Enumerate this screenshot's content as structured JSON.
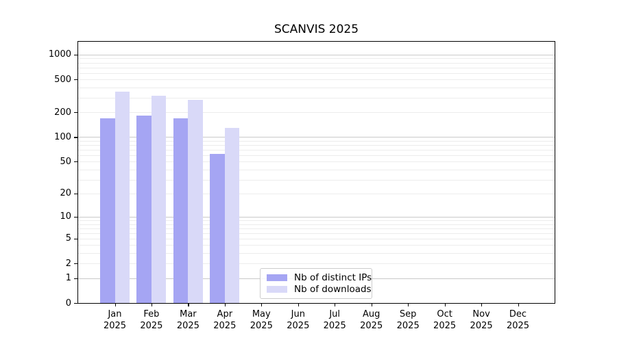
{
  "figure": {
    "title": "SCANVIS 2025"
  },
  "colors": {
    "distinct_ips": "#a5a5f3",
    "downloads": "#d9d9f8",
    "grid_major": "#c9c9c9",
    "grid_minor": "#ececec",
    "spine": "#000000",
    "background": "#ffffff",
    "legend_border": "#cccccc"
  },
  "legend": {
    "items": [
      {
        "key": "distinct_ips",
        "label": "Nb of distinct IPs"
      },
      {
        "key": "downloads",
        "label": "Nb of downloads"
      }
    ],
    "position": "lower center"
  },
  "y_axis": {
    "scale": "log1p",
    "tick_labels": [
      0,
      1,
      2,
      5,
      10,
      20,
      50,
      100,
      200,
      500,
      1000
    ],
    "major_gridlines": [
      1,
      10,
      100,
      1000
    ],
    "minor_gridline_decades": [
      1,
      10,
      100
    ],
    "max": 1430
  },
  "x_axis": {
    "months": [
      "Jan",
      "Feb",
      "Mar",
      "Apr",
      "May",
      "Jun",
      "Jul",
      "Aug",
      "Sep",
      "Oct",
      "Nov",
      "Dec"
    ],
    "year": "2025"
  },
  "chart_data": {
    "type": "bar",
    "title": "SCANVIS 2025",
    "categories": [
      "Jan 2025",
      "Feb 2025",
      "Mar 2025",
      "Apr 2025",
      "May 2025",
      "Jun 2025",
      "Jul 2025",
      "Aug 2025",
      "Sep 2025",
      "Oct 2025",
      "Nov 2025",
      "Dec 2025"
    ],
    "series": [
      {
        "name": "Nb of distinct IPs",
        "color": "#a5a5f3",
        "values": [
          170,
          182,
          168,
          62,
          0,
          0,
          0,
          0,
          0,
          0,
          0,
          0
        ]
      },
      {
        "name": "Nb of downloads",
        "color": "#d9d9f8",
        "values": [
          355,
          320,
          285,
          130,
          0,
          0,
          0,
          0,
          0,
          0,
          0,
          0
        ]
      }
    ],
    "xlabel": "",
    "ylabel": "",
    "yscale": "log1p",
    "ylim": [
      0,
      1430
    ],
    "grid": true,
    "legend_position": "lower center"
  }
}
